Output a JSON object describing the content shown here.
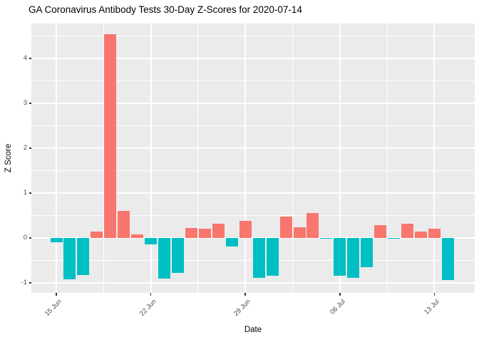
{
  "title": "GA Coronavirus Antibody Tests 30-Day Z-Scores for 2020-07-14",
  "chart_data": {
    "type": "bar",
    "title": "GA Coronavirus Antibody Tests 30-Day Z-Scores for 2020-07-14",
    "xlabel": "Date",
    "ylabel": "Z Score",
    "x": [
      "2020-06-15",
      "2020-06-16",
      "2020-06-17",
      "2020-06-18",
      "2020-06-19",
      "2020-06-20",
      "2020-06-21",
      "2020-06-22",
      "2020-06-23",
      "2020-06-24",
      "2020-06-25",
      "2020-06-26",
      "2020-06-27",
      "2020-06-28",
      "2020-06-29",
      "2020-06-30",
      "2020-07-01",
      "2020-07-02",
      "2020-07-03",
      "2020-07-04",
      "2020-07-05",
      "2020-07-06",
      "2020-07-07",
      "2020-07-08",
      "2020-07-09",
      "2020-07-10",
      "2020-07-11",
      "2020-07-12",
      "2020-07-13",
      "2020-07-14"
    ],
    "values": [
      -0.1,
      -0.92,
      -0.82,
      0.15,
      4.54,
      0.6,
      0.08,
      -0.15,
      -0.9,
      -0.78,
      0.22,
      0.21,
      0.32,
      -0.19,
      0.38,
      -0.89,
      -0.84,
      0.48,
      0.24,
      0.55,
      -0.02,
      -0.84,
      -0.89,
      -0.65,
      0.29,
      -0.02,
      0.32,
      0.15,
      0.21,
      -0.93
    ],
    "x_tick_labels": [
      "15 Jun",
      "22 Jun",
      "29 Jun",
      "06 Jul",
      "13 Jul"
    ],
    "x_tick_days": [
      0,
      7,
      14,
      21,
      28
    ],
    "y_ticks": [
      -1,
      0,
      1,
      2,
      3,
      4
    ],
    "y_minor_ticks": [
      -0.5,
      0.5,
      1.5,
      2.5,
      3.5,
      4.5
    ],
    "x_minor_days": [
      3.5,
      10.5,
      17.5,
      24.5
    ],
    "ylim": [
      -1.22,
      4.78
    ],
    "grid": "on",
    "legend": "none",
    "colors": {
      "positive": "#F8766D",
      "negative": "#00BFC4",
      "panel_background": "#EBEBEB",
      "gridline": "#FFFFFF",
      "axis_text": "#4D4D4D",
      "title_text": "#000000"
    }
  }
}
